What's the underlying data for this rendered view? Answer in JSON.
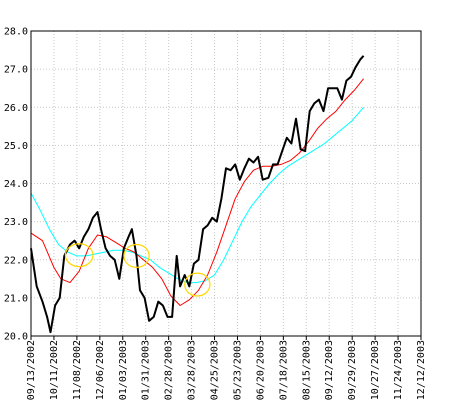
{
  "chart_data": {
    "type": "line",
    "title": "",
    "xlabel": "",
    "ylabel": "",
    "ylim": [
      20.0,
      28.0
    ],
    "y_ticks": [
      20.0,
      21.0,
      22.0,
      23.0,
      24.0,
      25.0,
      26.0,
      27.0,
      28.0
    ],
    "y_tick_labels": [
      "20.0",
      "21.0",
      "22.0",
      "23.0",
      "24.0",
      "25.0",
      "26.0",
      "27.0",
      "28.0"
    ],
    "x_tick_labels": [
      "09/13/2002",
      "10/11/2002",
      "11/08/2002",
      "12/06/2002",
      "01/03/2003",
      "01/31/2003",
      "02/28/2003",
      "03/28/2003",
      "04/25/2003",
      "05/23/2003",
      "06/20/2003",
      "07/18/2003",
      "08/15/2003",
      "09/12/2003",
      "09/29/2003",
      "10/27/2003",
      "11/24/2003",
      "12/12/2003"
    ],
    "grid": true,
    "legend": "none",
    "series": [
      {
        "color": "#000000",
        "points": [
          [
            0.0,
            22.3
          ],
          [
            0.25,
            21.3
          ],
          [
            0.5,
            20.9
          ],
          [
            0.7,
            20.5
          ],
          [
            0.85,
            20.1
          ],
          [
            1.05,
            20.8
          ],
          [
            1.25,
            21.0
          ],
          [
            1.45,
            22.1
          ],
          [
            1.7,
            22.4
          ],
          [
            1.9,
            22.5
          ],
          [
            2.1,
            22.3
          ],
          [
            2.3,
            22.6
          ],
          [
            2.5,
            22.8
          ],
          [
            2.7,
            23.1
          ],
          [
            2.9,
            23.25
          ],
          [
            3.05,
            22.8
          ],
          [
            3.25,
            22.3
          ],
          [
            3.45,
            22.1
          ],
          [
            3.65,
            22.0
          ],
          [
            3.85,
            21.5
          ],
          [
            4.05,
            22.3
          ],
          [
            4.25,
            22.6
          ],
          [
            4.4,
            22.8
          ],
          [
            4.6,
            22.1
          ],
          [
            4.75,
            21.2
          ],
          [
            4.95,
            21.0
          ],
          [
            5.15,
            20.4
          ],
          [
            5.35,
            20.5
          ],
          [
            5.55,
            20.9
          ],
          [
            5.75,
            20.8
          ],
          [
            5.95,
            20.5
          ],
          [
            6.15,
            20.5
          ],
          [
            6.35,
            22.1
          ],
          [
            6.5,
            21.3
          ],
          [
            6.7,
            21.6
          ],
          [
            6.9,
            21.3
          ],
          [
            7.1,
            21.9
          ],
          [
            7.3,
            22.0
          ],
          [
            7.5,
            22.8
          ],
          [
            7.7,
            22.9
          ],
          [
            7.9,
            23.1
          ],
          [
            8.1,
            23.0
          ],
          [
            8.3,
            23.6
          ],
          [
            8.5,
            24.4
          ],
          [
            8.7,
            24.35
          ],
          [
            8.9,
            24.5
          ],
          [
            9.1,
            24.1
          ],
          [
            9.3,
            24.4
          ],
          [
            9.5,
            24.65
          ],
          [
            9.7,
            24.55
          ],
          [
            9.9,
            24.7
          ],
          [
            10.1,
            24.1
          ],
          [
            10.35,
            24.15
          ],
          [
            10.55,
            24.5
          ],
          [
            10.75,
            24.5
          ],
          [
            10.95,
            24.85
          ],
          [
            11.15,
            25.2
          ],
          [
            11.35,
            25.05
          ],
          [
            11.55,
            25.7
          ],
          [
            11.75,
            24.9
          ],
          [
            11.95,
            24.85
          ],
          [
            12.15,
            25.9
          ],
          [
            12.35,
            26.1
          ],
          [
            12.55,
            26.2
          ],
          [
            12.75,
            25.9
          ],
          [
            12.95,
            26.5
          ],
          [
            13.15,
            26.5
          ],
          [
            13.35,
            26.5
          ],
          [
            13.55,
            26.2
          ],
          [
            13.75,
            26.7
          ],
          [
            13.95,
            26.8
          ],
          [
            14.15,
            27.05
          ],
          [
            14.35,
            27.25
          ],
          [
            14.5,
            27.35
          ]
        ]
      },
      {
        "color": "#ff0000",
        "points": [
          [
            0.0,
            22.7
          ],
          [
            0.5,
            22.5
          ],
          [
            1.0,
            21.8
          ],
          [
            1.3,
            21.5
          ],
          [
            1.7,
            21.4
          ],
          [
            2.1,
            21.7
          ],
          [
            2.5,
            22.3
          ],
          [
            2.9,
            22.65
          ],
          [
            3.3,
            22.6
          ],
          [
            3.7,
            22.45
          ],
          [
            4.1,
            22.3
          ],
          [
            4.5,
            22.2
          ],
          [
            4.9,
            22.0
          ],
          [
            5.3,
            21.8
          ],
          [
            5.7,
            21.5
          ],
          [
            6.1,
            21.05
          ],
          [
            6.5,
            20.8
          ],
          [
            6.9,
            20.95
          ],
          [
            7.3,
            21.2
          ],
          [
            7.7,
            21.6
          ],
          [
            8.1,
            22.2
          ],
          [
            8.5,
            22.9
          ],
          [
            8.9,
            23.6
          ],
          [
            9.3,
            24.05
          ],
          [
            9.7,
            24.35
          ],
          [
            10.1,
            24.45
          ],
          [
            10.5,
            24.45
          ],
          [
            10.9,
            24.5
          ],
          [
            11.3,
            24.6
          ],
          [
            11.7,
            24.8
          ],
          [
            12.1,
            25.1
          ],
          [
            12.5,
            25.45
          ],
          [
            12.9,
            25.7
          ],
          [
            13.3,
            25.9
          ],
          [
            13.7,
            26.2
          ],
          [
            14.1,
            26.45
          ],
          [
            14.5,
            26.75
          ]
        ]
      },
      {
        "color": "#00ffff",
        "points": [
          [
            0.0,
            23.75
          ],
          [
            0.4,
            23.3
          ],
          [
            0.8,
            22.8
          ],
          [
            1.2,
            22.4
          ],
          [
            1.6,
            22.2
          ],
          [
            2.0,
            22.1
          ],
          [
            2.4,
            22.1
          ],
          [
            2.8,
            22.15
          ],
          [
            3.2,
            22.2
          ],
          [
            3.6,
            22.25
          ],
          [
            4.0,
            22.25
          ],
          [
            4.4,
            22.2
          ],
          [
            4.8,
            22.1
          ],
          [
            5.2,
            22.0
          ],
          [
            5.6,
            21.8
          ],
          [
            6.0,
            21.65
          ],
          [
            6.4,
            21.5
          ],
          [
            6.8,
            21.4
          ],
          [
            7.2,
            21.4
          ],
          [
            7.6,
            21.45
          ],
          [
            8.0,
            21.6
          ],
          [
            8.4,
            22.0
          ],
          [
            8.8,
            22.5
          ],
          [
            9.2,
            23.0
          ],
          [
            9.6,
            23.4
          ],
          [
            10.0,
            23.7
          ],
          [
            10.4,
            24.0
          ],
          [
            10.8,
            24.25
          ],
          [
            11.2,
            24.45
          ],
          [
            11.6,
            24.6
          ],
          [
            12.0,
            24.75
          ],
          [
            12.4,
            24.9
          ],
          [
            12.8,
            25.05
          ],
          [
            13.2,
            25.25
          ],
          [
            13.6,
            25.45
          ],
          [
            14.0,
            25.65
          ],
          [
            14.5,
            26.0
          ]
        ]
      }
    ],
    "annotations": [
      {
        "shape": "ellipse",
        "color": "#ffd700",
        "cx": 2.1,
        "cy": 22.12,
        "rx": 0.6,
        "ry": 0.3
      },
      {
        "shape": "ellipse",
        "color": "#ffd700",
        "cx": 4.6,
        "cy": 22.1,
        "rx": 0.55,
        "ry": 0.3
      },
      {
        "shape": "ellipse",
        "color": "#ffd700",
        "cx": 7.25,
        "cy": 21.35,
        "rx": 0.55,
        "ry": 0.3
      }
    ]
  }
}
